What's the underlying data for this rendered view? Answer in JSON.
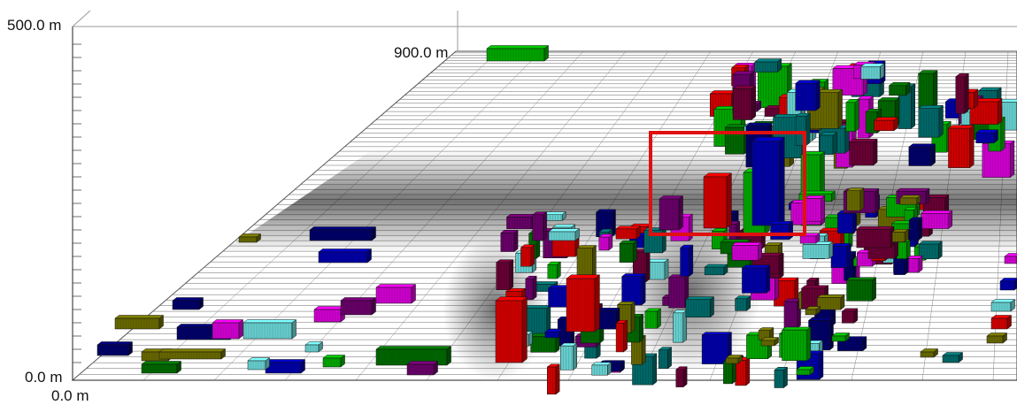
{
  "axes": {
    "z_top_label": "500.0 m",
    "depth_label": "900.0 m",
    "z_bottom_label": "0.0 m",
    "x_origin_label": "0.0 m"
  },
  "scene": {
    "type": "3d-city-block-model",
    "ground_grid": "on",
    "highlight": {
      "present": true,
      "color": "#e01010"
    },
    "block_colors": [
      "#ff0000",
      "#00cc00",
      "#0000cc",
      "#000080",
      "#008080",
      "#80ffff",
      "#808000",
      "#ff00ff",
      "#800080",
      "#008000",
      "#800040"
    ]
  }
}
